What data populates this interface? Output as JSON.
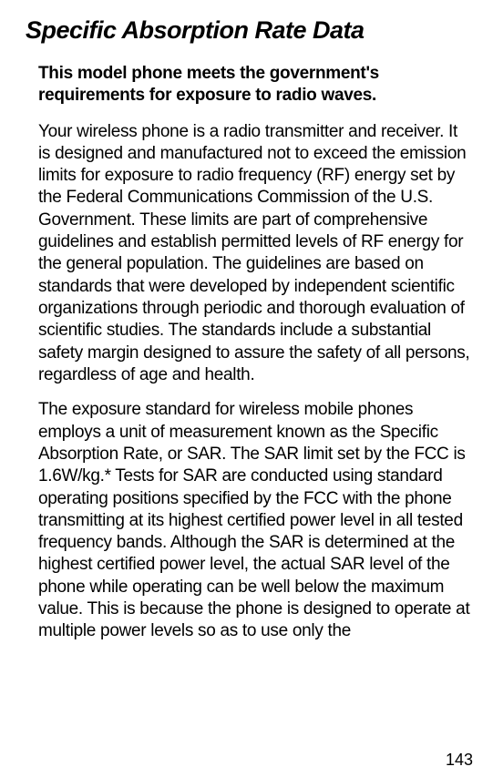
{
  "title": "Specific Absorption Rate Data",
  "intro": "This model phone meets the government's requirements for exposure to radio waves.",
  "paragraph1": "Your wireless phone is a radio transmitter and receiver. It is designed and manufactured not to exceed the emission limits for exposure to radio frequency (RF) energy set by the Federal Communications Commission of the U.S. Government. These limits are part of comprehensive guidelines and establish permitted levels of RF energy for the general population. The guidelines are based on standards that were developed by independent scientific organizations through periodic and thorough evaluation of scientific studies. The standards include a substantial safety margin designed to assure the safety of all persons, regardless of age and health.",
  "paragraph2": "The exposure standard for wireless mobile phones employs a unit of measurement known as the Specific Absorption Rate, or SAR. The SAR limit set by the FCC is 1.6W/kg.* Tests for SAR are conducted using standard operating positions specified by the FCC with the phone transmitting at its highest certified power level in all tested frequency bands. Although the SAR is determined at the highest certified power level, the actual SAR level of the phone while operating can be well below the maximum value. This is because the phone is designed to operate at multiple power levels so as to use only the",
  "pageNumber": "143"
}
